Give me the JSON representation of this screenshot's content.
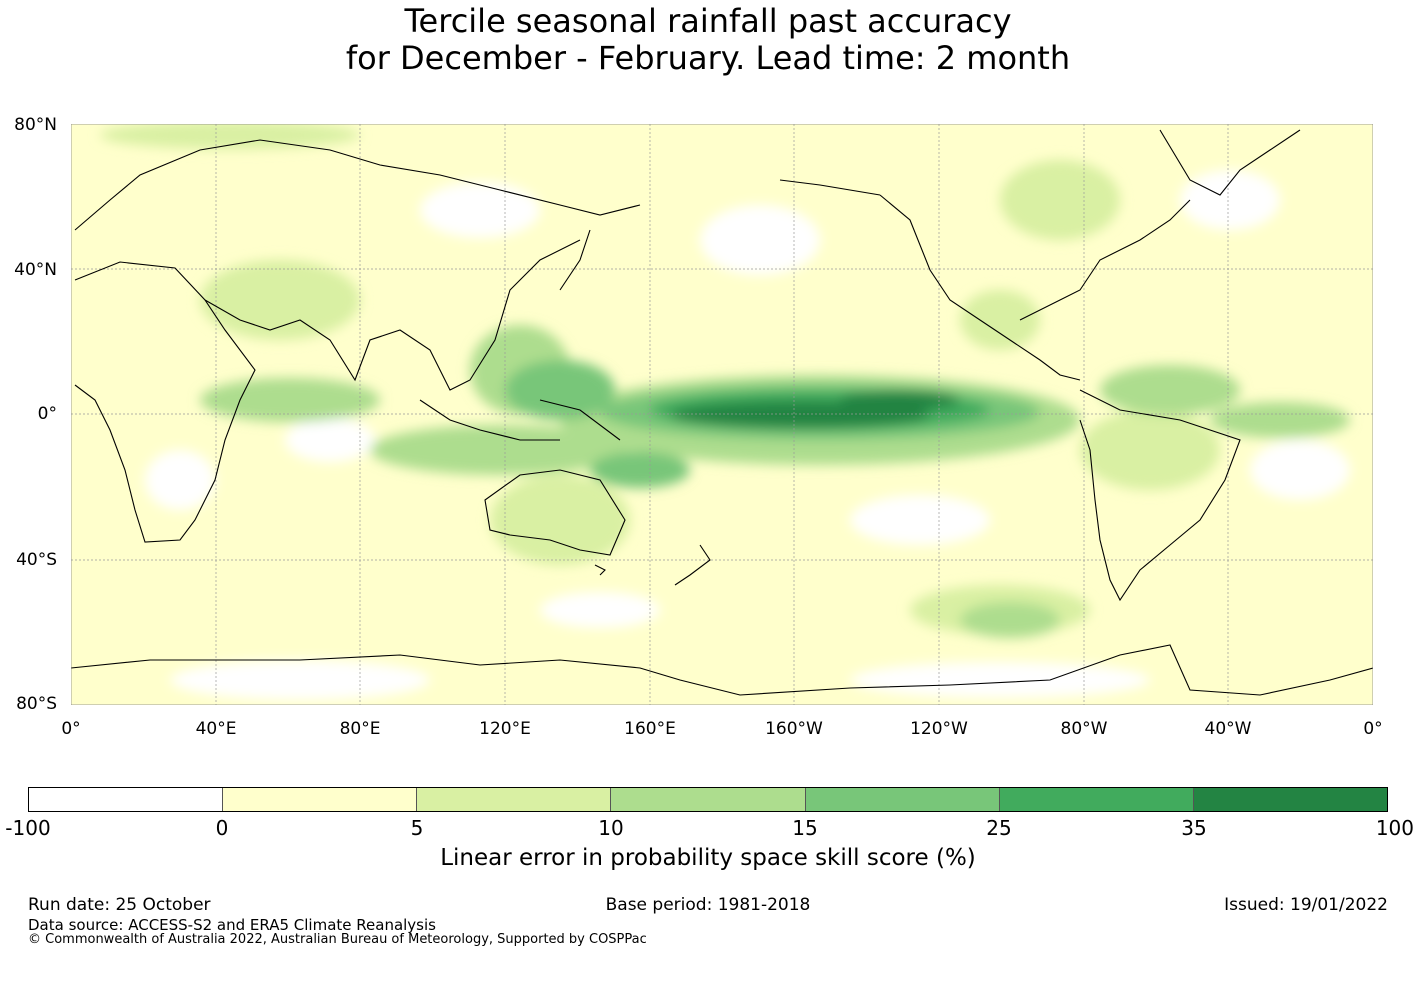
{
  "title": {
    "line1": "Tercile seasonal rainfall past accuracy",
    "line2": "for December - February. Lead time: 2 month"
  },
  "map": {
    "lat_labels": [
      "80°N",
      "40°N",
      "0°",
      "40°S",
      "80°S"
    ],
    "lon_labels": [
      "0°",
      "40°E",
      "80°E",
      "120°E",
      "160°E",
      "160°W",
      "120°W",
      "80°W",
      "40°W",
      "0°"
    ],
    "gridline_color": "#999999",
    "coastline_color": "#000000"
  },
  "colorbar": {
    "ticks": [
      "-100",
      "0",
      "5",
      "10",
      "15",
      "25",
      "35",
      "100"
    ],
    "colors": [
      "#ffffff",
      "#ffffcc",
      "#d9f0a3",
      "#addd8e",
      "#78c679",
      "#41ab5d",
      "#238443"
    ],
    "label": "Linear error in probability space skill score (%)"
  },
  "footer": {
    "run_date": "Run date: 25 October",
    "base_period": "Base period: 1981-2018",
    "issued": "Issued: 19/01/2022",
    "data_source": "Data source: ACCESS-S2 and ERA5 Climate Reanalysis",
    "copyright": "© Commonwealth of Australia 2022, Australian Bureau of Meteorology, Supported by COSPPac"
  }
}
